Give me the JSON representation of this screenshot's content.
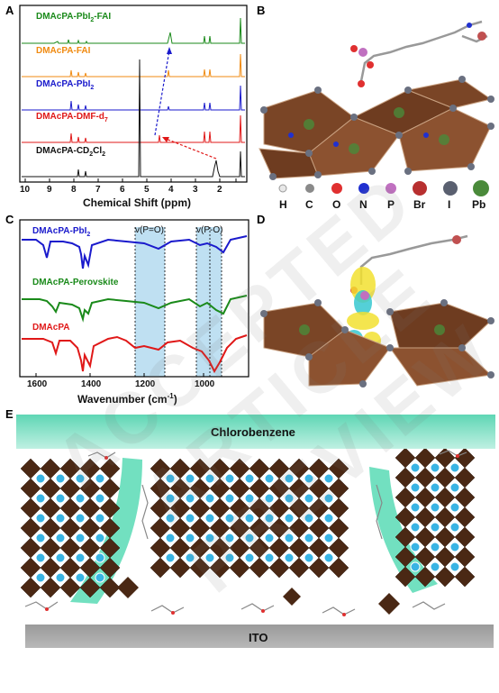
{
  "panels": {
    "A": "A",
    "B": "B",
    "C": "C",
    "D": "D",
    "E": "E"
  },
  "panelA": {
    "traces": [
      {
        "label": "DMAcPA-PbI",
        "sub": "2",
        "suffix": "-FAI",
        "color": "#1a8a1a"
      },
      {
        "label": "DMAcPA-FAI",
        "sub": "",
        "suffix": "",
        "color": "#f08a10"
      },
      {
        "label": "DMAcPA-PbI",
        "sub": "2",
        "suffix": "",
        "color": "#1a1acc"
      },
      {
        "label": "DMAcPA-DMF-d",
        "sub": "7",
        "suffix": "",
        "color": "#e01818"
      },
      {
        "label": "DMAcPA-CD",
        "sub": "2",
        "suffix": "Cl",
        "sub2": "2",
        "color": "#111111"
      }
    ],
    "xticks": [
      "10",
      "9",
      "8",
      "7",
      "6",
      "5",
      "4",
      "3",
      "2"
    ],
    "xlabel": "Chemical Shift (ppm)"
  },
  "panelB": {
    "legend": [
      {
        "sym": "H",
        "color": "#e8e8e8",
        "r": 4
      },
      {
        "sym": "C",
        "color": "#8a8a8a",
        "r": 5
      },
      {
        "sym": "O",
        "color": "#e03030",
        "r": 6
      },
      {
        "sym": "N",
        "color": "#2030d0",
        "r": 6
      },
      {
        "sym": "P",
        "color": "#c070c0",
        "r": 6
      },
      {
        "sym": "Br",
        "color": "#b83030",
        "r": 8
      },
      {
        "sym": "I",
        "color": "#5a6070",
        "r": 8
      },
      {
        "sym": "Pb",
        "color": "#4a8a3a",
        "r": 9
      }
    ]
  },
  "panelC": {
    "traces": [
      {
        "label": "DMAcPA-PbI",
        "sub": "2",
        "color": "#1a1acc"
      },
      {
        "label": "DMAcPA-Perovskite",
        "sub": "",
        "color": "#1a8a1a"
      },
      {
        "label": "DMAcPA",
        "sub": "",
        "color": "#e01818"
      }
    ],
    "band1": "v(P=O)",
    "band2": "v(P-O)",
    "xticks": [
      "1600",
      "1400",
      "1200",
      "1000"
    ],
    "xlabel": "Wavenumber (cm",
    "xlabel_sup": "-1",
    "xlabel_end": ")"
  },
  "panelE": {
    "top_label": "Chlorobenzene",
    "bottom_label": "ITO"
  },
  "watermark": "ACCEPTED ARTICLE PREVIEW"
}
